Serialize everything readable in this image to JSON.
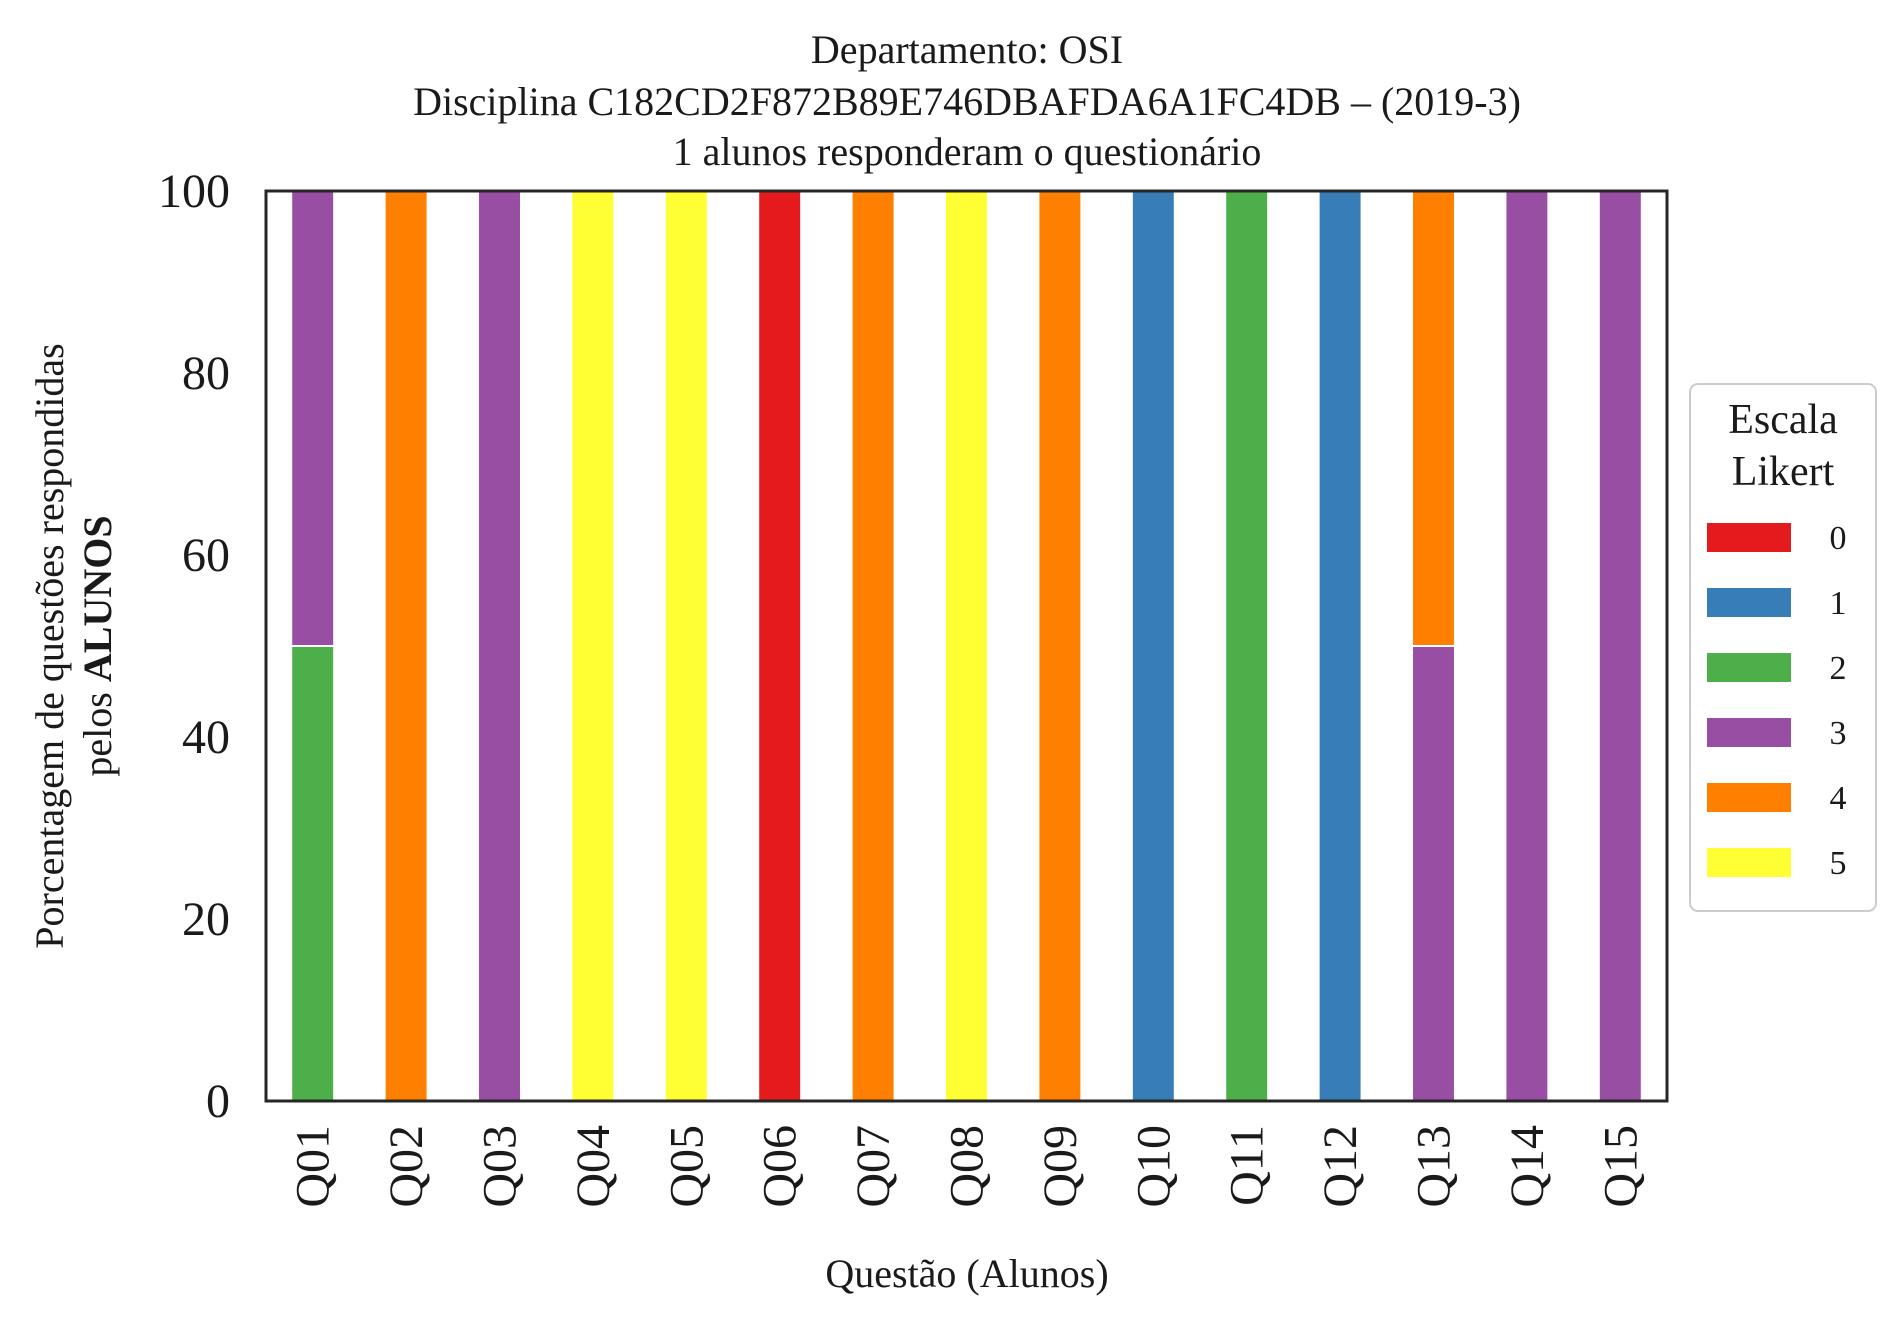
{
  "chart_data": {
    "type": "bar",
    "stacked": true,
    "title_lines": [
      "Departamento: OSI",
      "Disciplina C182CD2F872B89E746DBAFDA6A1FC4DB – (2019-3)",
      "1 alunos responderam o questionário"
    ],
    "xlabel": "Questão (Alunos)",
    "ylabel_line1": "Porcentagem de questões respondidas",
    "ylabel_line2_prefix": "pelos ",
    "ylabel_line2_bold": "ALUNOS",
    "ylim": [
      0,
      100
    ],
    "yticks": [
      0,
      20,
      40,
      60,
      80,
      100
    ],
    "grid": false,
    "categories": [
      "Q01",
      "Q02",
      "Q03",
      "Q04",
      "Q05",
      "Q06",
      "Q07",
      "Q08",
      "Q09",
      "Q10",
      "Q11",
      "Q12",
      "Q13",
      "Q14",
      "Q15"
    ],
    "legend": {
      "title_lines": [
        "Escala",
        "Likert"
      ],
      "placement": "right"
    },
    "series": [
      {
        "name": "0",
        "color": "#e41a1c",
        "values": [
          0,
          0,
          0,
          0,
          0,
          100,
          0,
          0,
          0,
          0,
          0,
          0,
          0,
          0,
          0
        ]
      },
      {
        "name": "1",
        "color": "#377eb8",
        "values": [
          0,
          0,
          0,
          0,
          0,
          0,
          0,
          0,
          0,
          100,
          0,
          100,
          0,
          0,
          0
        ]
      },
      {
        "name": "2",
        "color": "#4daf4a",
        "values": [
          50,
          0,
          0,
          0,
          0,
          0,
          0,
          0,
          0,
          0,
          100,
          0,
          0,
          0,
          0
        ]
      },
      {
        "name": "3",
        "color": "#984ea3",
        "values": [
          50,
          0,
          100,
          0,
          0,
          0,
          0,
          0,
          0,
          0,
          0,
          0,
          50,
          100,
          100
        ]
      },
      {
        "name": "4",
        "color": "#ff7f00",
        "values": [
          0,
          100,
          0,
          0,
          0,
          0,
          100,
          0,
          100,
          0,
          0,
          0,
          50,
          0,
          0
        ]
      },
      {
        "name": "5",
        "color": "#ffff33",
        "values": [
          0,
          0,
          0,
          100,
          100,
          0,
          0,
          100,
          0,
          0,
          0,
          0,
          0,
          0,
          0
        ]
      }
    ]
  }
}
